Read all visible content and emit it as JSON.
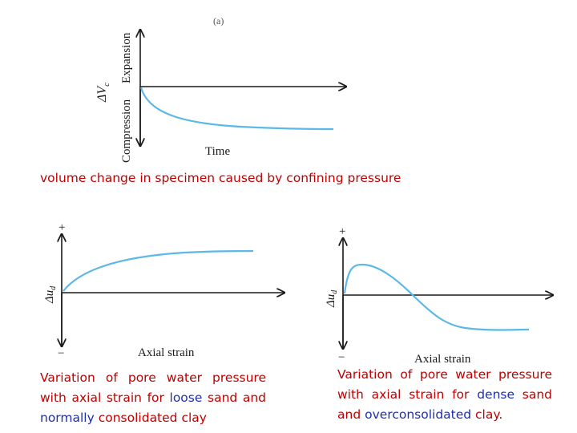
{
  "colors": {
    "curve": "#5bb8e8",
    "axis": "#1a1a1a",
    "caption": "#c00000",
    "highlight": "#1f2fa8"
  },
  "top_plot": {
    "panel_label": "(a)",
    "y_label_expansion": "Expansion",
    "y_label_compression": "Compression",
    "y_symbol": "ΔV",
    "y_symbol_sub": "c",
    "x_label": "Time",
    "caption": "volume change in specimen caused by confining pressure"
  },
  "left_plot": {
    "plus": "+",
    "minus": "−",
    "y_symbol": "Δu",
    "y_symbol_sub": "d",
    "x_label": "Axial strain",
    "caption": {
      "part1": "Variation of pore water pressure with axial strain for ",
      "hl1": "loose",
      "part2": " sand and ",
      "hl2": "normally",
      "part3": " consolidated clay"
    }
  },
  "right_plot": {
    "plus": "+",
    "minus": "−",
    "y_symbol": "Δu",
    "y_symbol_sub": "d",
    "x_label": "Axial strain",
    "caption": {
      "part1": "Variation of pore water pressure with axial strain for ",
      "hl1": "dense",
      "part2": " sand and ",
      "hl2": "overconsolidated",
      "part3": " clay."
    }
  }
}
